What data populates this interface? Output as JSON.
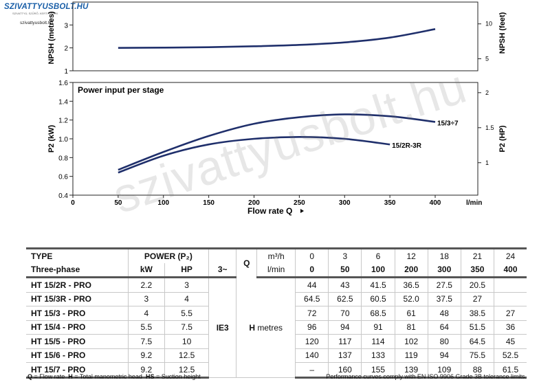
{
  "logo": {
    "brand": "SZIVATTYUSBOLT.HU",
    "tagline": "SZIVATTYÚ, SZŰRŐ, KERTI GÉPEK",
    "site": "szivattyusbolt.hu"
  },
  "watermark": "szivattyusbolt.hu",
  "chart_data": [
    {
      "type": "line",
      "name": "npsh",
      "ylabel": "NPSH (metres)",
      "ylabel_right": "NPSH (feet)",
      "ylim": [
        1,
        4
      ],
      "yticks": [
        1,
        2,
        3
      ],
      "yticks_right": [
        5,
        10
      ],
      "xlim": [
        0,
        400
      ],
      "series": [
        {
          "x": [
            50,
            100,
            150,
            200,
            250,
            300,
            350,
            400
          ],
          "y": [
            2.0,
            2.01,
            2.03,
            2.07,
            2.13,
            2.24,
            2.45,
            2.82
          ]
        }
      ]
    },
    {
      "type": "line",
      "name": "power",
      "title": "Power input per stage",
      "ylabel": "P2 (kW)",
      "ylabel_right": "P2 (HP)",
      "xlabel": "Flow rate Q",
      "x_unit": "l/min",
      "xlim": [
        0,
        400
      ],
      "xticks": [
        0,
        50,
        100,
        150,
        200,
        250,
        300,
        350,
        400
      ],
      "ylim": [
        0.4,
        1.6
      ],
      "yticks": [
        0.4,
        0.6,
        0.8,
        1.0,
        1.2,
        1.4,
        1.6
      ],
      "yticks_right": [
        1,
        1.5,
        2
      ],
      "series": [
        {
          "name": "15/3÷7",
          "x": [
            50,
            100,
            150,
            200,
            250,
            300,
            350,
            400
          ],
          "y": [
            0.67,
            0.86,
            1.03,
            1.16,
            1.23,
            1.26,
            1.24,
            1.18
          ]
        },
        {
          "name": "15/2R-3R",
          "x": [
            50,
            100,
            150,
            200,
            250,
            300,
            350
          ],
          "y": [
            0.64,
            0.82,
            0.94,
            1.0,
            1.02,
            1.0,
            0.94
          ]
        }
      ]
    }
  ],
  "table": {
    "type_label": "TYPE",
    "phase_label": "Three-phase",
    "power_label": "POWER (P₂)",
    "kw_label": "kW",
    "hp_label": "HP",
    "tilde_label": "3~",
    "q_label": "Q",
    "m3h_label": "m³/h",
    "lmin_label": "l/min",
    "ie3_label": "IE3",
    "h_label": "H",
    "h_unit": "metres",
    "flow_m3h": [
      "0",
      "3",
      "6",
      "12",
      "18",
      "21",
      "24"
    ],
    "flow_lmin": [
      "0",
      "50",
      "100",
      "200",
      "300",
      "350",
      "400"
    ],
    "rows": [
      {
        "type": "HT 15/2R - PRO",
        "kw": "2.2",
        "hp": "3",
        "h": [
          "44",
          "43",
          "41.5",
          "36.5",
          "27.5",
          "20.5",
          ""
        ]
      },
      {
        "type": "HT 15/3R - PRO",
        "kw": "3",
        "hp": "4",
        "h": [
          "64.5",
          "62.5",
          "60.5",
          "52.0",
          "37.5",
          "27",
          ""
        ]
      },
      {
        "type": "HT 15/3 - PRO",
        "kw": "4",
        "hp": "5.5",
        "h": [
          "72",
          "70",
          "68.5",
          "61",
          "48",
          "38.5",
          "27"
        ]
      },
      {
        "type": "HT 15/4 - PRO",
        "kw": "5.5",
        "hp": "7.5",
        "h": [
          "96",
          "94",
          "91",
          "81",
          "64",
          "51.5",
          "36"
        ]
      },
      {
        "type": "HT 15/5 - PRO",
        "kw": "7.5",
        "hp": "10",
        "h": [
          "120",
          "117",
          "114",
          "102",
          "80",
          "64.5",
          "45"
        ]
      },
      {
        "type": "HT 15/6 - PRO",
        "kw": "9.2",
        "hp": "12.5",
        "h": [
          "140",
          "137",
          "133",
          "119",
          "94",
          "75.5",
          "52.5"
        ]
      },
      {
        "type": "HT 15/7 - PRO",
        "kw": "9.2",
        "hp": "12.5",
        "h": [
          "–",
          "160",
          "155",
          "139",
          "109",
          "88",
          "61.5"
        ]
      }
    ]
  },
  "footer": {
    "legend": "Q = Flow rate  H = Total manometric head  HS = Suction height",
    "note": "Performance curves comply with EN ISO 9906 Grade 3B tolerance limits."
  },
  "colors": {
    "curve": "#1f2f6b",
    "axis": "#222222",
    "border": "#555555"
  }
}
